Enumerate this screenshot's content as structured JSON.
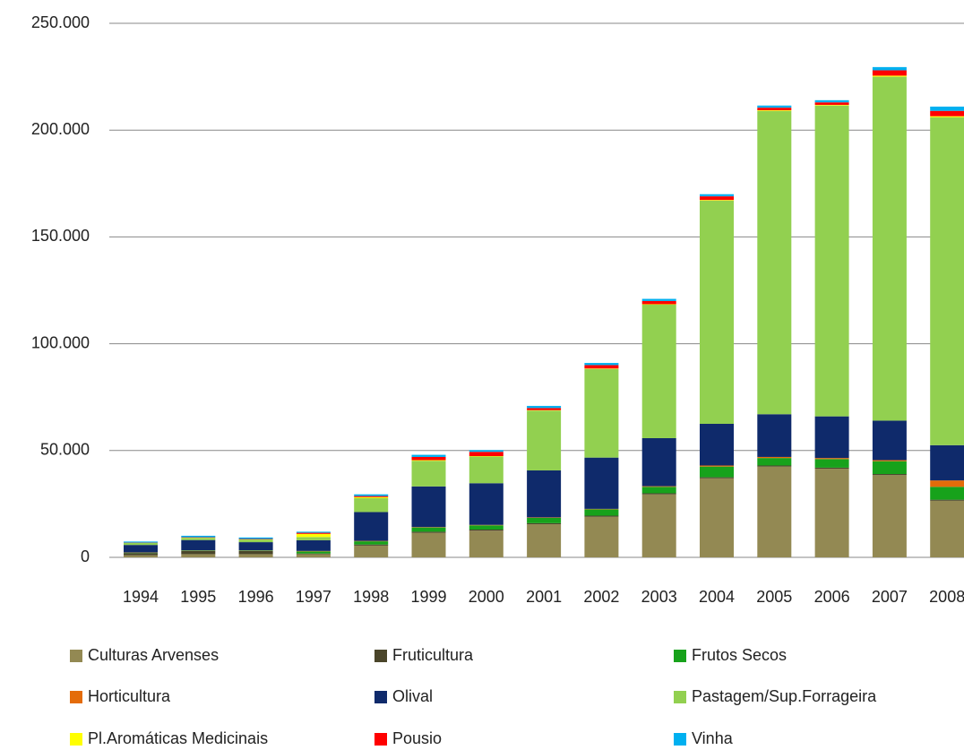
{
  "chart_data": {
    "type": "stacked_bar",
    "categories": [
      "1994",
      "1995",
      "1996",
      "1997",
      "1998",
      "1999",
      "2000",
      "2001",
      "2002",
      "2003",
      "2004",
      "2005",
      "2006",
      "2007",
      "2008"
    ],
    "series": [
      {
        "name": "Culturas Arvenses",
        "color": "#938953",
        "values": [
          1000,
          1500,
          1500,
          1500,
          5500,
          11500,
          12500,
          15500,
          19000,
          29500,
          37000,
          42500,
          41500,
          38500,
          26500
        ]
      },
      {
        "name": "Fruticultura",
        "color": "#4a452a",
        "values": [
          1000,
          1500,
          1500,
          300,
          500,
          500,
          500,
          500,
          500,
          500,
          500,
          500,
          500,
          500,
          500
        ]
      },
      {
        "name": "Frutos Secos",
        "color": "#17a21b",
        "values": [
          200,
          200,
          200,
          1000,
          1500,
          2000,
          2000,
          2500,
          3000,
          3000,
          5000,
          3500,
          4000,
          6000,
          6000
        ]
      },
      {
        "name": "Horticultura",
        "color": "#e46c0a",
        "values": [
          100,
          100,
          100,
          200,
          200,
          200,
          200,
          200,
          200,
          300,
          500,
          500,
          500,
          500,
          3000
        ]
      },
      {
        "name": "Olival",
        "color": "#0f2a6b",
        "values": [
          3500,
          4800,
          3800,
          5000,
          13500,
          19000,
          19500,
          22000,
          24000,
          22500,
          19500,
          20000,
          19500,
          18500,
          16500
        ]
      },
      {
        "name": "Pastagem/Sup.Forrageira",
        "color": "#92d050",
        "values": [
          1000,
          1000,
          1200,
          1500,
          6500,
          12000,
          12500,
          28000,
          41500,
          62500,
          104500,
          142000,
          145500,
          161000,
          153500
        ]
      },
      {
        "name": "Pl.Aromáticas Medicinais",
        "color": "#ffff00",
        "values": [
          0,
          100,
          100,
          1500,
          500,
          300,
          200,
          200,
          200,
          200,
          300,
          300,
          300,
          500,
          500
        ]
      },
      {
        "name": "Pousio",
        "color": "#ff0000",
        "values": [
          100,
          200,
          200,
          500,
          500,
          1500,
          2000,
          1000,
          1600,
          1500,
          1700,
          1200,
          1200,
          2500,
          2500
        ]
      },
      {
        "name": "Vinha",
        "color": "#00b0f0",
        "values": [
          500,
          700,
          700,
          500,
          800,
          1000,
          800,
          1000,
          1000,
          1000,
          1000,
          1000,
          1000,
          1500,
          2000
        ]
      }
    ],
    "ylim": [
      0,
      250000
    ],
    "yticks": [
      0,
      {
        "value": 50000,
        "label": "50.000"
      },
      {
        "value": 100000,
        "label": "100.000"
      },
      {
        "value": 150000,
        "label": "150.000"
      },
      {
        "value": 200000,
        "label": "200.000"
      },
      {
        "value": 250000,
        "label": "250.000"
      }
    ],
    "grid": true,
    "legend": "bottom"
  }
}
